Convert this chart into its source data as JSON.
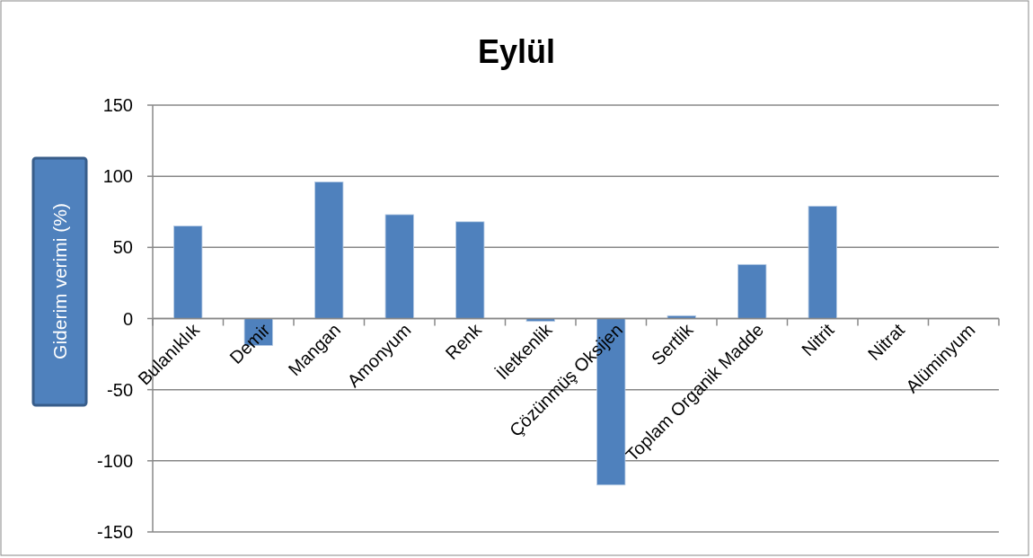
{
  "chart_data": {
    "type": "bar",
    "title": "Eylül",
    "ylabel": "Giderim verimi (%)",
    "categories": [
      "Bulanıklık",
      "Demir",
      "Mangan",
      "Amonyum",
      "Renk",
      "İletkenlik",
      "Çözünmüş Oksijen",
      "Sertlik",
      "Toplam Organik Madde",
      "Nitrit",
      "Nitrat",
      "Alüminyum"
    ],
    "values": [
      65,
      -19,
      96,
      73,
      68,
      -2,
      -117,
      2,
      38,
      79,
      0,
      0
    ],
    "color": "#4f81bd",
    "ylim": [
      -150,
      150
    ],
    "yticks": [
      -150,
      -100,
      -50,
      0,
      50,
      100,
      150
    ],
    "grid": "y"
  }
}
